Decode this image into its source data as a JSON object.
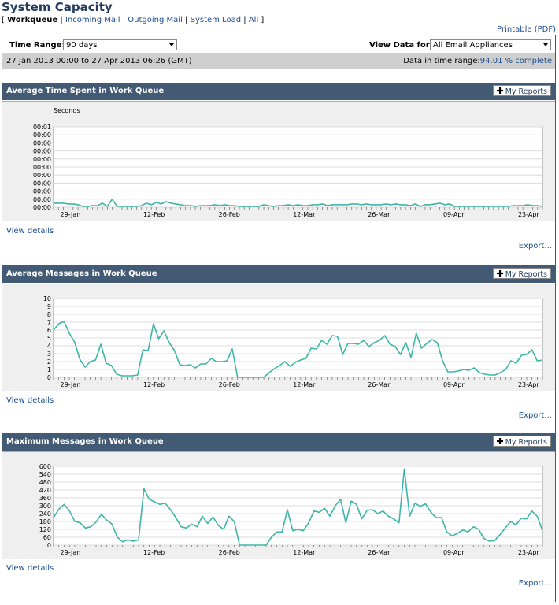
{
  "page_title": "System Capacity",
  "subnav": {
    "open": "[",
    "current": "Workqueue",
    "links": [
      "Incoming Mail",
      "Outgoing Mail",
      "System Load",
      "All"
    ],
    "sep": "|",
    "close": "]"
  },
  "printable": "Printable (PDF)",
  "filters": {
    "time_range_label": "Time Range:",
    "time_range_value": "90 days",
    "view_for_label": "View Data for:",
    "view_for_value": "All Email Appliances"
  },
  "daterange": "27 Jan 2013 00:00 to 27 Apr 2013 06:26 (GMT)",
  "data_in_range_label": "Data in time range:",
  "data_in_range_value": "94.01 % complete",
  "my_reports": "My Reports",
  "colors": {
    "accent_line": "#3db6a8",
    "header": "#425a74"
  },
  "sections": [
    {
      "title": "Average Time Spent in Work Queue",
      "view_details": "View details",
      "export": "Export..."
    },
    {
      "title": "Average Messages in Work Queue",
      "view_details": "View details",
      "export": "Export..."
    },
    {
      "title": "Maximum Messages in Work Queue",
      "view_details": "View details",
      "export": "Export..."
    }
  ],
  "chart_data": [
    {
      "type": "line",
      "title": "",
      "ylabel": "Seconds",
      "y_tick_labels": [
        "00:01",
        "00:00",
        "00:00",
        "00:00",
        "00:00",
        "00:00",
        "00:00",
        "00:00",
        "00:00",
        "00:00",
        "00:00"
      ],
      "x_tick_labels": [
        "29-Jan",
        "12-Feb",
        "26-Feb",
        "12-Mar",
        "26-Mar",
        "09-Apr",
        "23-Apr"
      ],
      "ylim": [
        0,
        10
      ],
      "grid": true,
      "values": [
        0.5,
        0.5,
        0.5,
        0.4,
        0.4,
        0.3,
        0.1,
        0.1,
        0.2,
        0.2,
        0.5,
        0.1,
        1.0,
        0.1,
        0.1,
        0.1,
        0.1,
        0.1,
        0.2,
        0.5,
        0.3,
        0.6,
        0.4,
        0.7,
        0.5,
        0.4,
        0.3,
        0.2,
        0.2,
        0.1,
        0.2,
        0.2,
        0.2,
        0.3,
        0.2,
        0.3,
        0.2,
        0.2,
        0.1,
        0.1,
        0.1,
        0.1,
        0.1,
        0.3,
        0.2,
        0.1,
        0.2,
        0.2,
        0.3,
        0.2,
        0.3,
        0.2,
        0.2,
        0.3,
        0.3,
        0.4,
        0.2,
        0.3,
        0.3,
        0.3,
        0.3,
        0.4,
        0.4,
        0.3,
        0.4,
        0.3,
        0.3,
        0.3,
        0.4,
        0.3,
        0.4,
        0.3,
        0.3,
        0.2,
        0.4,
        0.1,
        0.3,
        0.3,
        0.4,
        0.5,
        0.3,
        0.4,
        0.1,
        0.1,
        0.1,
        0.1,
        0.1,
        0.1,
        0.1,
        0.1,
        0.1,
        0.1,
        0.1,
        0.1,
        0.2,
        0.2,
        0.2,
        0.3,
        0.2,
        0.2,
        0.1
      ]
    },
    {
      "type": "line",
      "title": "",
      "y_tick_labels": [
        "10",
        "9",
        "8",
        "7",
        "6",
        "5",
        "4",
        "3",
        "2",
        "1",
        "0"
      ],
      "x_tick_labels": [
        "29-Jan",
        "12-Feb",
        "26-Feb",
        "12-Mar",
        "26-Mar",
        "09-Apr",
        "23-Apr"
      ],
      "ylim": [
        0,
        10
      ],
      "grid": true,
      "values": [
        6.0,
        6.8,
        7.1,
        5.6,
        4.5,
        2.3,
        1.3,
        2.0,
        2.2,
        4.2,
        1.8,
        1.5,
        0.4,
        0.2,
        0.2,
        0.2,
        0.3,
        3.5,
        3.4,
        6.8,
        4.9,
        5.9,
        4.4,
        3.4,
        1.6,
        1.5,
        1.6,
        1.2,
        1.7,
        1.7,
        2.4,
        2.0,
        2.0,
        2.1,
        3.6,
        0.0,
        0.0,
        0.0,
        0.0,
        0.0,
        0.0,
        0.6,
        1.1,
        1.5,
        2.0,
        1.4,
        1.9,
        2.2,
        2.4,
        3.7,
        3.6,
        4.7,
        4.2,
        5.3,
        5.2,
        2.9,
        4.3,
        4.3,
        4.2,
        4.7,
        3.9,
        4.4,
        4.7,
        5.3,
        4.2,
        3.9,
        2.9,
        4.4,
        2.5,
        5.6,
        3.7,
        4.3,
        4.8,
        4.4,
        2.1,
        0.7,
        0.7,
        0.8,
        1.0,
        0.9,
        1.2,
        0.6,
        0.4,
        0.3,
        0.3,
        0.6,
        1.0,
        2.1,
        1.8,
        2.8,
        2.9,
        3.5,
        2.1,
        2.2
      ]
    },
    {
      "type": "line",
      "title": "",
      "y_tick_labels": [
        "600",
        "540",
        "480",
        "420",
        "360",
        "300",
        "240",
        "180",
        "120",
        "60",
        "0"
      ],
      "x_tick_labels": [
        "29-Jan",
        "12-Feb",
        "26-Feb",
        "12-Mar",
        "26-Mar",
        "09-Apr",
        "23-Apr"
      ],
      "ylim": [
        0,
        600
      ],
      "grid": true,
      "values": [
        210,
        275,
        310,
        260,
        180,
        170,
        130,
        140,
        175,
        235,
        190,
        160,
        60,
        25,
        40,
        30,
        40,
        430,
        350,
        330,
        310,
        320,
        270,
        210,
        140,
        130,
        160,
        140,
        220,
        165,
        215,
        150,
        120,
        220,
        180,
        0,
        0,
        0,
        0,
        0,
        0,
        60,
        100,
        100,
        270,
        110,
        120,
        110,
        170,
        260,
        250,
        280,
        220,
        300,
        350,
        170,
        335,
        310,
        200,
        265,
        270,
        240,
        260,
        220,
        200,
        170,
        580,
        220,
        320,
        295,
        315,
        250,
        210,
        210,
        100,
        70,
        90,
        115,
        100,
        140,
        120,
        50,
        30,
        35,
        80,
        130,
        180,
        155,
        205,
        200,
        260,
        220,
        110
      ]
    }
  ]
}
